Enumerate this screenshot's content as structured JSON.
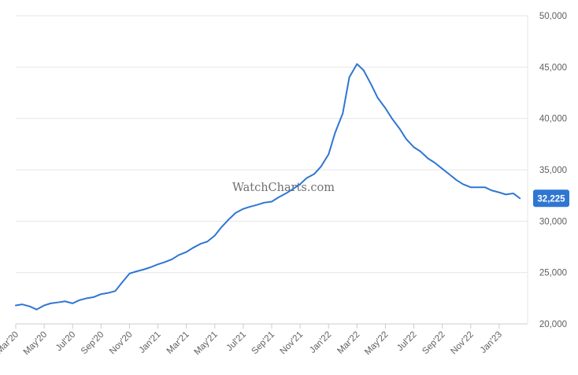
{
  "watermark": "WatchCharts.com",
  "accent_color": "#2f76d2",
  "chart_data": {
    "type": "line",
    "title": "",
    "xlabel": "",
    "ylabel": "",
    "ylim": [
      20000,
      50000
    ],
    "ytick_labels": [
      "20,000",
      "25,000",
      "30,000",
      "35,000",
      "40,000",
      "45,000",
      "50,000"
    ],
    "ytick_values": [
      20000,
      25000,
      30000,
      35000,
      40000,
      45000,
      50000
    ],
    "xtick_labels": [
      "Mar'20",
      "May'20",
      "Jul'20",
      "Sep'20",
      "Nov'20",
      "Jan'21",
      "Mar'21",
      "May'21",
      "Jul'21",
      "Sep'21",
      "Nov'21",
      "Jan'22",
      "Mar'22",
      "May'22",
      "Jul'22",
      "Sep'22",
      "Nov'22",
      "Jan'23"
    ],
    "x_start": "2020-03",
    "x_end": "2023-03",
    "grid": true,
    "last_value_label": "32,225",
    "series": [
      {
        "color": "#2f76d2",
        "x": [
          "2020-03-01",
          "2020-03-15",
          "2020-04-01",
          "2020-04-15",
          "2020-05-01",
          "2020-05-15",
          "2020-06-01",
          "2020-06-15",
          "2020-07-01",
          "2020-07-15",
          "2020-08-01",
          "2020-08-15",
          "2020-09-01",
          "2020-09-15",
          "2020-10-01",
          "2020-10-15",
          "2020-11-01",
          "2020-11-15",
          "2020-12-01",
          "2020-12-15",
          "2021-01-01",
          "2021-01-15",
          "2021-02-01",
          "2021-02-15",
          "2021-03-01",
          "2021-03-15",
          "2021-04-01",
          "2021-04-15",
          "2021-05-01",
          "2021-05-15",
          "2021-06-01",
          "2021-06-15",
          "2021-07-01",
          "2021-07-15",
          "2021-08-01",
          "2021-08-15",
          "2021-09-01",
          "2021-09-15",
          "2021-10-01",
          "2021-10-15",
          "2021-11-01",
          "2021-11-15",
          "2021-12-01",
          "2021-12-15",
          "2022-01-01",
          "2022-01-15",
          "2022-02-01",
          "2022-02-15",
          "2022-03-01",
          "2022-03-15",
          "2022-04-01",
          "2022-04-15",
          "2022-05-01",
          "2022-05-15",
          "2022-06-01",
          "2022-06-15",
          "2022-07-01",
          "2022-07-15",
          "2022-08-01",
          "2022-08-15",
          "2022-09-01",
          "2022-09-15",
          "2022-10-01",
          "2022-10-15",
          "2022-11-01",
          "2022-11-15",
          "2022-12-01",
          "2022-12-15",
          "2023-01-01",
          "2023-01-15",
          "2023-02-01",
          "2023-02-15"
        ],
        "values": [
          21800,
          21900,
          21700,
          21400,
          21800,
          22000,
          22100,
          22200,
          22000,
          22300,
          22500,
          22600,
          22900,
          23000,
          23200,
          24000,
          24900,
          25100,
          25300,
          25500,
          25800,
          26000,
          26300,
          26700,
          27000,
          27400,
          27800,
          28000,
          28600,
          29400,
          30200,
          30800,
          31200,
          31400,
          31600,
          31800,
          31900,
          32300,
          32700,
          33100,
          33600,
          34200,
          34600,
          35300,
          36500,
          38600,
          40500,
          44000,
          45300,
          44700,
          43300,
          42000,
          41000,
          40000,
          39000,
          38000,
          37200,
          36800,
          36100,
          35700,
          35100,
          34600,
          34000,
          33600,
          33300,
          33300,
          33300,
          33000,
          32800,
          32600,
          32700,
          32225
        ]
      }
    ]
  }
}
